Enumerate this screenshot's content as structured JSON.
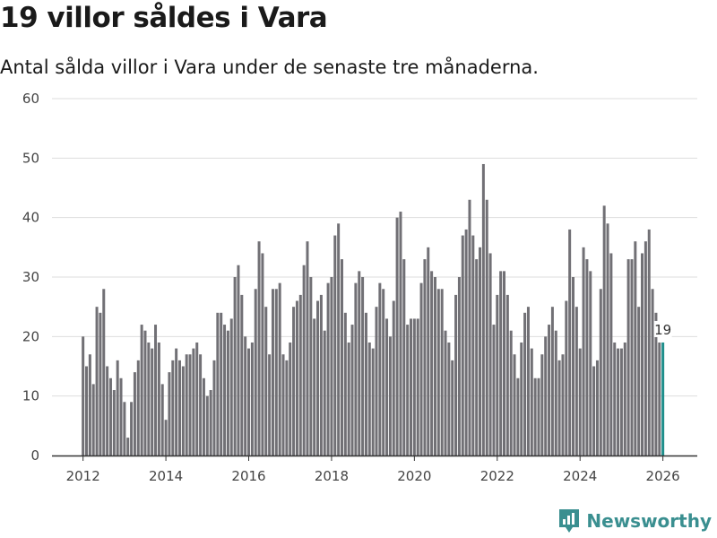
{
  "header": {
    "title": "19 villor såldes i Vara",
    "subtitle": "Antal sålda villor i Vara under de senaste tre månaderna."
  },
  "brand": {
    "name": "Newsworthy",
    "icon": "newsworthy-logo-icon"
  },
  "colors": {
    "bar": "#717075",
    "highlight": "#1f8f8c",
    "grid": "#dddddd",
    "axis": "#333333",
    "brand": "#3a8f90"
  },
  "chart_data": {
    "type": "bar",
    "title": "19 villor såldes i Vara",
    "subtitle": "Antal sålda villor i Vara under de senaste tre månaderna.",
    "xlabel": "",
    "ylabel": "",
    "ylim": [
      0,
      60
    ],
    "yticks": [
      0,
      10,
      20,
      30,
      40,
      50,
      60
    ],
    "xticks": [
      2012,
      2014,
      2016,
      2018,
      2020,
      2022,
      2024,
      2026
    ],
    "x_range": [
      2011.25,
      2026.83
    ],
    "start": [
      2012,
      1
    ],
    "grid": true,
    "values": [
      20,
      15,
      17,
      12,
      25,
      24,
      28,
      15,
      13,
      11,
      16,
      13,
      9,
      3,
      9,
      14,
      16,
      22,
      21,
      19,
      18,
      22,
      19,
      12,
      6,
      14,
      16,
      18,
      16,
      15,
      17,
      17,
      18,
      19,
      17,
      13,
      10,
      11,
      16,
      24,
      24,
      22,
      21,
      23,
      30,
      32,
      27,
      20,
      18,
      19,
      28,
      36,
      34,
      25,
      17,
      28,
      28,
      29,
      17,
      16,
      19,
      25,
      26,
      27,
      32,
      36,
      30,
      23,
      26,
      27,
      21,
      29,
      30,
      37,
      39,
      33,
      24,
      19,
      22,
      29,
      31,
      30,
      24,
      19,
      18,
      25,
      29,
      28,
      23,
      20,
      26,
      40,
      41,
      33,
      22,
      23,
      23,
      23,
      29,
      33,
      35,
      31,
      30,
      28,
      28,
      21,
      19,
      16,
      27,
      30,
      37,
      38,
      43,
      37,
      33,
      35,
      49,
      43,
      34,
      22,
      27,
      31,
      31,
      27,
      21,
      17,
      13,
      19,
      24,
      25,
      18,
      13,
      13,
      17,
      20,
      22,
      25,
      21,
      16,
      17,
      26,
      38,
      30,
      25,
      18,
      35,
      33,
      31,
      15,
      16,
      28,
      42,
      39,
      34,
      19,
      18,
      18,
      19,
      33,
      33,
      36,
      25,
      34,
      36,
      38,
      28,
      24,
      19,
      19
    ],
    "highlight_label": "19"
  }
}
